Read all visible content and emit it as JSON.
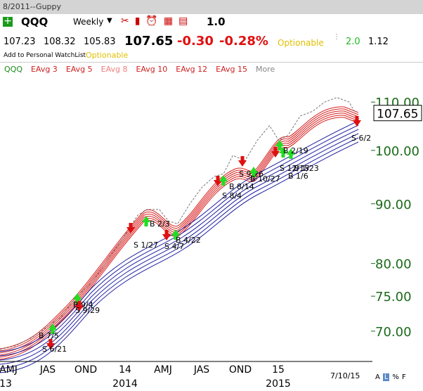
{
  "window": {
    "title": "8/2011--Guppy"
  },
  "toolbar": {
    "symbol": "QQQ",
    "period": "Weekly",
    "zoom": "1.0"
  },
  "quote": {
    "open": "107.23",
    "high": "108.32",
    "low": "105.83",
    "last": "107.65",
    "change": "-0.30",
    "change_pct": "-0.28%",
    "optionable": "Optionable",
    "value2": "2.0",
    "value3": "1.12"
  },
  "watchlist": {
    "add": "Add to Personal WatchList",
    "optionable": "Optionable"
  },
  "legend": [
    "QQQ",
    "EAvg 3",
    "EAvg 5",
    "EAvg 8",
    "EAvg 10",
    "EAvg 12",
    "EAvg 15",
    "More"
  ],
  "chart_data": {
    "type": "line",
    "log_scale": true,
    "x": [
      0,
      5,
      10,
      15,
      20,
      25,
      30,
      35,
      40,
      45,
      48,
      52,
      55,
      58,
      62,
      66,
      70,
      73,
      76,
      80,
      84,
      88,
      91,
      94,
      98,
      102,
      106,
      110,
      114,
      116
    ],
    "series": [
      {
        "name": "QQQ",
        "color": "#777777",
        "values": [
          67.5,
          68,
          69,
          70.5,
          72,
          75,
          77,
          80.5,
          84,
          88,
          89,
          89,
          87,
          86.5,
          90,
          93,
          95,
          95.5,
          99,
          98,
          102,
          105,
          102,
          103,
          107,
          108,
          110,
          111,
          110,
          107.65
        ]
      }
    ],
    "xlim": [
      0,
      117
    ],
    "ylim": [
      66.3,
      115.5
    ],
    "yticks": [
      {
        "value": 110,
        "label": "110.00"
      },
      {
        "value": 100,
        "label": "100.00"
      },
      {
        "value": 90,
        "label": "90.00"
      },
      {
        "value": 80,
        "label": "80.00"
      },
      {
        "value": 75,
        "label": "75.00"
      },
      {
        "value": 70,
        "label": "70.00"
      }
    ],
    "x_labels": [
      "AMJ",
      "JAS",
      "OND",
      "14",
      "AMJ",
      "JAS",
      "OND",
      "15"
    ],
    "year_labels": [
      "13",
      "2014",
      "2015"
    ],
    "signals": [
      "S 6/21",
      "B 7/5",
      "B 9/4",
      "S 9/29",
      "S 1/27",
      "B 2/3",
      "S 4/7",
      "B 4/22",
      "S 8/4",
      "B 8/14",
      "S 9/26",
      "B 10/27",
      "S 12/15",
      "B 1/6",
      "B 1/23",
      "B 2/19",
      "S 6/2"
    ]
  },
  "footer": {
    "date": "7/10/15",
    "buttons": [
      "A",
      "L",
      "%",
      "F"
    ]
  }
}
